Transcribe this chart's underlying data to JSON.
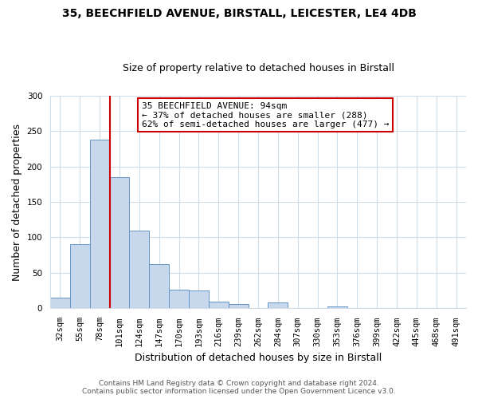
{
  "title": "35, BEECHFIELD AVENUE, BIRSTALL, LEICESTER, LE4 4DB",
  "subtitle": "Size of property relative to detached houses in Birstall",
  "xlabel": "Distribution of detached houses by size in Birstall",
  "ylabel": "Number of detached properties",
  "bin_labels": [
    "32sqm",
    "55sqm",
    "78sqm",
    "101sqm",
    "124sqm",
    "147sqm",
    "170sqm",
    "193sqm",
    "216sqm",
    "239sqm",
    "262sqm",
    "284sqm",
    "307sqm",
    "330sqm",
    "353sqm",
    "376sqm",
    "399sqm",
    "422sqm",
    "445sqm",
    "468sqm",
    "491sqm"
  ],
  "bar_values": [
    15,
    90,
    238,
    185,
    110,
    62,
    26,
    25,
    10,
    6,
    0,
    8,
    0,
    0,
    3,
    0,
    1,
    0,
    0,
    0,
    1
  ],
  "bar_color": "#c8d8ec",
  "bar_edge_color": "#6496c8",
  "vline_color": "#cc0000",
  "vline_pos": 2.5,
  "annotation_title": "35 BEECHFIELD AVENUE: 94sqm",
  "annotation_line1": "← 37% of detached houses are smaller (288)",
  "annotation_line2": "62% of semi-detached houses are larger (477) →",
  "annotation_box_facecolor": "#ffffff",
  "annotation_box_edgecolor": "#cc0000",
  "footer_line1": "Contains HM Land Registry data © Crown copyright and database right 2024.",
  "footer_line2": "Contains public sector information licensed under the Open Government Licence v3.0.",
  "bg_color": "#ffffff",
  "ylim": [
    0,
    300
  ],
  "yticks": [
    0,
    50,
    100,
    150,
    200,
    250,
    300
  ],
  "grid_color": "#d0dce8",
  "title_fontsize": 10,
  "subtitle_fontsize": 9,
  "ylabel_fontsize": 9,
  "xlabel_fontsize": 9,
  "tick_fontsize": 7.5,
  "annotation_fontsize": 8,
  "footer_fontsize": 6.5
}
